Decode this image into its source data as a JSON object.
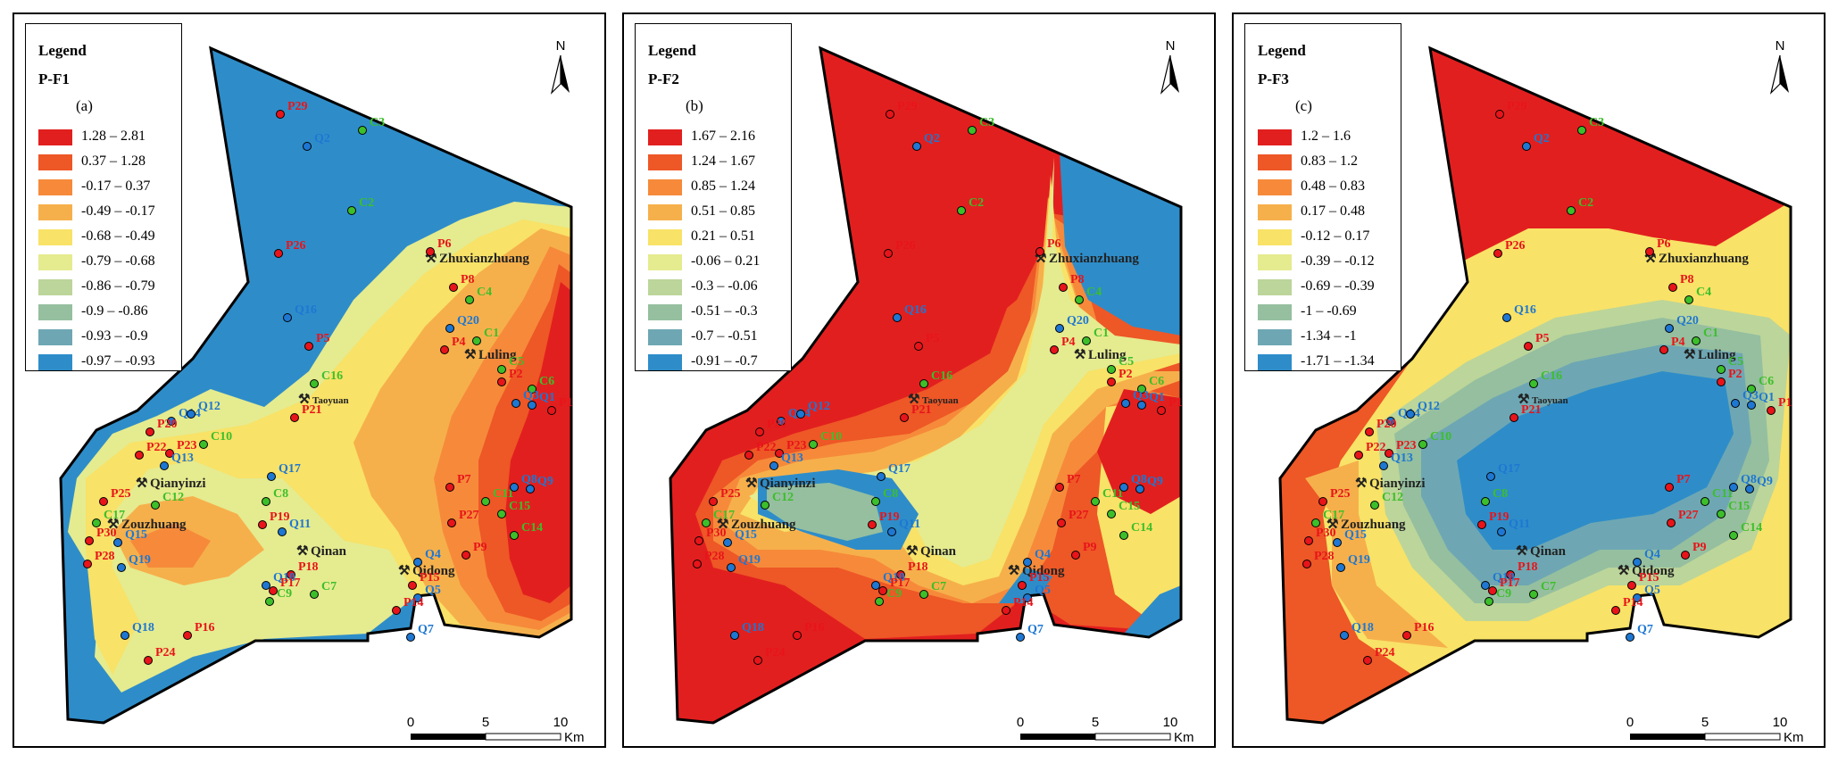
{
  "north_label": "N",
  "legend_title": "Legend",
  "scale": {
    "ticks": [
      "0",
      "5",
      "10"
    ],
    "unit": "Km"
  },
  "towns": [
    "Zhuxianzhuang",
    "Luling",
    "Taoyuan",
    "Qianyinzi",
    "Zouzhuang",
    "Qinan",
    "Qidong"
  ],
  "colors": {
    "p": "#e8141a",
    "q": "#1e77d2",
    "c": "#3cbf2a",
    "border": "#000000"
  },
  "panels": [
    {
      "name": "P-F1",
      "letter": "(a)",
      "legend": [
        {
          "range": "1.28 – 2.81",
          "color": "#e21f1f"
        },
        {
          "range": "0.37 – 1.28",
          "color": "#ee5726"
        },
        {
          "range": "-0.17 – 0.37",
          "color": "#f68a3a"
        },
        {
          "range": "-0.49 – -0.17",
          "color": "#f6b04b"
        },
        {
          "range": "-0.68 – -0.49",
          "color": "#f8e267"
        },
        {
          "range": "-0.79 – -0.68",
          "color": "#e5eb8f"
        },
        {
          "range": "-0.86 – -0.79",
          "color": "#bcd59a"
        },
        {
          "range": "-0.9 – -0.86",
          "color": "#95bf9f"
        },
        {
          "range": "-0.93 – -0.9",
          "color": "#6ea7b3"
        },
        {
          "range": "-0.97 – -0.93",
          "color": "#2e8dc9"
        }
      ]
    },
    {
      "name": "P-F2",
      "letter": "(b)",
      "legend": [
        {
          "range": "1.67 – 2.16",
          "color": "#e21f1f"
        },
        {
          "range": "1.24 – 1.67",
          "color": "#ee5726"
        },
        {
          "range": "0.85 – 1.24",
          "color": "#f68a3a"
        },
        {
          "range": "0.51 – 0.85",
          "color": "#f6b04b"
        },
        {
          "range": "0.21 – 0.51",
          "color": "#f8e267"
        },
        {
          "range": "-0.06 – 0.21",
          "color": "#e5eb8f"
        },
        {
          "range": "-0.3 – -0.06",
          "color": "#bcd59a"
        },
        {
          "range": "-0.51 – -0.3",
          "color": "#95bf9f"
        },
        {
          "range": "-0.7 – -0.51",
          "color": "#6ea7b3"
        },
        {
          "range": "-0.91 – -0.7",
          "color": "#2e8dc9"
        }
      ]
    },
    {
      "name": "P-F3",
      "letter": "(c)",
      "legend": [
        {
          "range": "1.2 – 1.6",
          "color": "#e21f1f"
        },
        {
          "range": "0.83 – 1.2",
          "color": "#ee5726"
        },
        {
          "range": "0.48 – 0.83",
          "color": "#f68a3a"
        },
        {
          "range": "0.17 – 0.48",
          "color": "#f6b04b"
        },
        {
          "range": "-0.12 – 0.17",
          "color": "#f8e267"
        },
        {
          "range": "-0.39 – -0.12",
          "color": "#e5eb8f"
        },
        {
          "range": "-0.69 – -0.39",
          "color": "#bcd59a"
        },
        {
          "range": "-1 – -0.69",
          "color": "#95bf9f"
        },
        {
          "range": "-1.34 – -1",
          "color": "#6ea7b3"
        },
        {
          "range": "-1.71 – -1.34",
          "color": "#2e8dc9"
        }
      ]
    }
  ],
  "sites": [
    {
      "id": "P29",
      "type": "p"
    },
    {
      "id": "Q2",
      "type": "q"
    },
    {
      "id": "C3",
      "type": "c"
    },
    {
      "id": "C2",
      "type": "c"
    },
    {
      "id": "P6",
      "type": "p"
    },
    {
      "id": "P26",
      "type": "p"
    },
    {
      "id": "P8",
      "type": "p"
    },
    {
      "id": "C4",
      "type": "c"
    },
    {
      "id": "Q16",
      "type": "q"
    },
    {
      "id": "Q20",
      "type": "q"
    },
    {
      "id": "P5",
      "type": "p"
    },
    {
      "id": "P4",
      "type": "p"
    },
    {
      "id": "C1",
      "type": "c"
    },
    {
      "id": "C5",
      "type": "c"
    },
    {
      "id": "P2",
      "type": "p"
    },
    {
      "id": "C6",
      "type": "c"
    },
    {
      "id": "C16",
      "type": "c"
    },
    {
      "id": "Q3",
      "type": "q"
    },
    {
      "id": "Q1",
      "type": "q"
    },
    {
      "id": "P1",
      "type": "p"
    },
    {
      "id": "Q14",
      "type": "q"
    },
    {
      "id": "Q12",
      "type": "q"
    },
    {
      "id": "P21",
      "type": "p"
    },
    {
      "id": "P20",
      "type": "p"
    },
    {
      "id": "P22",
      "type": "p"
    },
    {
      "id": "P23",
      "type": "p"
    },
    {
      "id": "C10",
      "type": "c"
    },
    {
      "id": "Q13",
      "type": "q"
    },
    {
      "id": "Q17",
      "type": "q"
    },
    {
      "id": "P7",
      "type": "p"
    },
    {
      "id": "C11",
      "type": "c"
    },
    {
      "id": "Q8",
      "type": "q"
    },
    {
      "id": "Q9",
      "type": "q"
    },
    {
      "id": "P25",
      "type": "p"
    },
    {
      "id": "C12",
      "type": "c"
    },
    {
      "id": "C8",
      "type": "c"
    },
    {
      "id": "C17",
      "type": "c"
    },
    {
      "id": "P27",
      "type": "p"
    },
    {
      "id": "C15",
      "type": "c"
    },
    {
      "id": "P19",
      "type": "p"
    },
    {
      "id": "Q11",
      "type": "q"
    },
    {
      "id": "C14",
      "type": "c"
    },
    {
      "id": "P30",
      "type": "p"
    },
    {
      "id": "Q15",
      "type": "q"
    },
    {
      "id": "P9",
      "type": "p"
    },
    {
      "id": "Q4",
      "type": "q"
    },
    {
      "id": "P28",
      "type": "p"
    },
    {
      "id": "Q19",
      "type": "q"
    },
    {
      "id": "P18",
      "type": "p"
    },
    {
      "id": "Q10",
      "type": "q"
    },
    {
      "id": "P17",
      "type": "p"
    },
    {
      "id": "C7",
      "type": "c"
    },
    {
      "id": "P15",
      "type": "p"
    },
    {
      "id": "Q5",
      "type": "q"
    },
    {
      "id": "C9",
      "type": "c"
    },
    {
      "id": "P14",
      "type": "p"
    },
    {
      "id": "Q18",
      "type": "q"
    },
    {
      "id": "P16",
      "type": "p"
    },
    {
      "id": "Q7",
      "type": "q"
    },
    {
      "id": "P24",
      "type": "p"
    }
  ]
}
